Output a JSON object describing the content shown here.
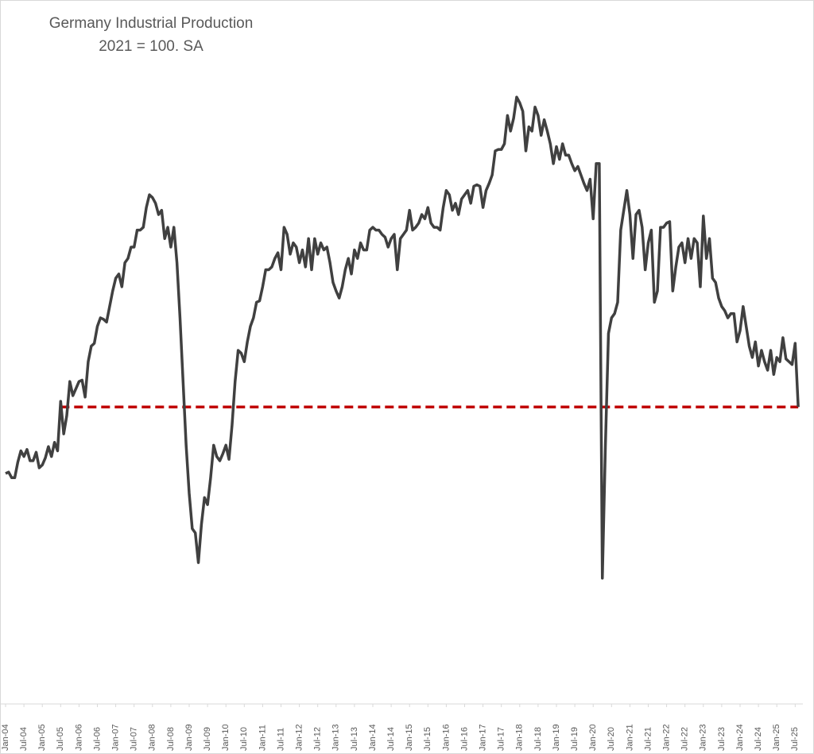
{
  "chart_data": {
    "type": "line",
    "title": "Germany Industrial Production",
    "subtitle": "2021 = 100. SA",
    "categories": [
      "Jan-04",
      null,
      null,
      null,
      null,
      null,
      "Jul-04",
      null,
      null,
      null,
      null,
      null,
      "Jan-05",
      null,
      null,
      null,
      null,
      null,
      "Jul-05",
      null,
      null,
      null,
      null,
      null,
      "Jan-06",
      null,
      null,
      null,
      null,
      null,
      "Jul-06",
      null,
      null,
      null,
      null,
      null,
      "Jan-07",
      null,
      null,
      null,
      null,
      null,
      "Jul-07",
      null,
      null,
      null,
      null,
      null,
      "Jan-08",
      null,
      null,
      null,
      null,
      null,
      "Jul-08",
      null,
      null,
      null,
      null,
      null,
      "Jan-09",
      null,
      null,
      null,
      null,
      null,
      "Jul-09",
      null,
      null,
      null,
      null,
      null,
      "Jan-10",
      null,
      null,
      null,
      null,
      null,
      "Jul-10",
      null,
      null,
      null,
      null,
      null,
      "Jan-11",
      null,
      null,
      null,
      null,
      null,
      "Jul-11",
      null,
      null,
      null,
      null,
      null,
      "Jan-12",
      null,
      null,
      null,
      null,
      null,
      "Jul-12",
      null,
      null,
      null,
      null,
      null,
      "Jan-13",
      null,
      null,
      null,
      null,
      null,
      "Jul-13",
      null,
      null,
      null,
      null,
      null,
      "Jan-14",
      null,
      null,
      null,
      null,
      null,
      "Jul-14",
      null,
      null,
      null,
      null,
      null,
      "Jan-15",
      null,
      null,
      null,
      null,
      null,
      "Jul-15",
      null,
      null,
      null,
      null,
      null,
      "Jan-16",
      null,
      null,
      null,
      null,
      null,
      "Jul-16",
      null,
      null,
      null,
      null,
      null,
      "Jan-17",
      null,
      null,
      null,
      null,
      null,
      "Jul-17",
      null,
      null,
      null,
      null,
      null,
      "Jan-18",
      null,
      null,
      null,
      null,
      null,
      "Jul-18",
      null,
      null,
      null,
      null,
      null,
      "Jan-19",
      null,
      null,
      null,
      null,
      null,
      "Jul-19",
      null,
      null,
      null,
      null,
      null,
      "Jan-20",
      null,
      null,
      null,
      null,
      null,
      "Jul-20",
      null,
      null,
      null,
      null,
      null,
      "Jan-21",
      null,
      null,
      null,
      null,
      null,
      "Jul-21",
      null,
      null,
      null,
      null,
      null,
      "Jan-22",
      null,
      null,
      null,
      null,
      null,
      "Jul-22",
      null,
      null,
      null,
      null,
      null,
      "Jan-23",
      null,
      null,
      null,
      null,
      null,
      "Jul-23",
      null,
      null,
      null,
      null,
      null,
      "Jan-24",
      null,
      null,
      null,
      null,
      null,
      "Jul-24",
      null,
      null,
      null,
      null,
      null,
      "Jan-25",
      null,
      null,
      null,
      null,
      null,
      "Jul-25",
      null
    ],
    "values": [
      83.4,
      83.5,
      83.1,
      83.1,
      84.2,
      85.0,
      84.6,
      85.1,
      84.3,
      84.3,
      84.9,
      83.8,
      84.0,
      84.5,
      85.3,
      84.6,
      85.6,
      85.0,
      88.5,
      86.2,
      87.5,
      89.9,
      88.9,
      89.4,
      89.9,
      90.0,
      88.8,
      91.3,
      92.4,
      92.6,
      93.8,
      94.4,
      94.3,
      94.1,
      95.2,
      96.3,
      97.2,
      97.5,
      96.6,
      98.3,
      98.6,
      99.4,
      99.4,
      100.6,
      100.6,
      100.8,
      102.2,
      103.1,
      102.9,
      102.5,
      101.7,
      102.0,
      100.0,
      100.8,
      99.4,
      100.8,
      98.3,
      94.4,
      89.9,
      85.4,
      82.0,
      79.5,
      79.2,
      77.1,
      79.8,
      81.7,
      81.2,
      83.1,
      85.4,
      84.6,
      84.3,
      84.8,
      85.4,
      84.4,
      86.8,
      89.9,
      92.1,
      91.9,
      91.3,
      92.7,
      93.8,
      94.4,
      95.5,
      95.6,
      96.6,
      97.8,
      97.8,
      98.0,
      98.6,
      99.0,
      97.8,
      100.8,
      100.3,
      98.9,
      99.7,
      99.4,
      98.3,
      99.2,
      98.0,
      100.0,
      97.8,
      100.0,
      98.9,
      99.7,
      99.2,
      99.4,
      98.3,
      96.9,
      96.3,
      95.8,
      96.6,
      97.8,
      98.6,
      97.5,
      99.2,
      98.6,
      99.7,
      99.2,
      99.2,
      100.6,
      100.8,
      100.6,
      100.6,
      100.3,
      100.1,
      99.4,
      100.0,
      100.3,
      97.8,
      100.0,
      100.3,
      100.6,
      102.0,
      100.6,
      100.8,
      101.1,
      101.7,
      101.4,
      102.2,
      101.1,
      100.8,
      100.8,
      100.6,
      102.2,
      103.4,
      103.1,
      102.0,
      102.5,
      101.7,
      102.8,
      103.1,
      103.4,
      102.5,
      103.7,
      103.8,
      103.7,
      102.2,
      103.4,
      103.9,
      104.5,
      106.2,
      106.3,
      106.3,
      106.7,
      108.7,
      107.6,
      108.5,
      110.0,
      109.6,
      109.0,
      106.2,
      107.9,
      107.6,
      109.3,
      108.7,
      107.3,
      108.4,
      107.6,
      106.7,
      105.3,
      106.5,
      105.6,
      106.7,
      105.9,
      105.9,
      105.3,
      104.8,
      105.1,
      104.5,
      103.9,
      103.4,
      104.2,
      101.4,
      105.3,
      105.3,
      76.0,
      85.4,
      93.3,
      94.4,
      94.7,
      95.5,
      100.6,
      102.0,
      103.4,
      101.7,
      98.6,
      101.7,
      102.0,
      100.8,
      97.8,
      99.7,
      100.6,
      95.5,
      96.3,
      100.8,
      100.8,
      101.1,
      101.2,
      96.3,
      98.0,
      99.4,
      99.7,
      98.3,
      100.0,
      98.6,
      100.0,
      99.7,
      96.6,
      101.6,
      98.6,
      100.0,
      97.2,
      96.9,
      95.8,
      95.2,
      94.9,
      94.4,
      94.7,
      94.7,
      92.7,
      93.5,
      95.2,
      93.8,
      92.4,
      91.6,
      92.7,
      91.0,
      92.1,
      91.3,
      90.7,
      92.1,
      90.4,
      91.6,
      91.3,
      93.0,
      91.5,
      91.3,
      91.1,
      92.6,
      88.1
    ],
    "color": "#404040",
    "ylim": [
      67,
      114
    ],
    "reference_line": {
      "value": 88.1,
      "color": "#c00000",
      "style": "dashed"
    }
  }
}
